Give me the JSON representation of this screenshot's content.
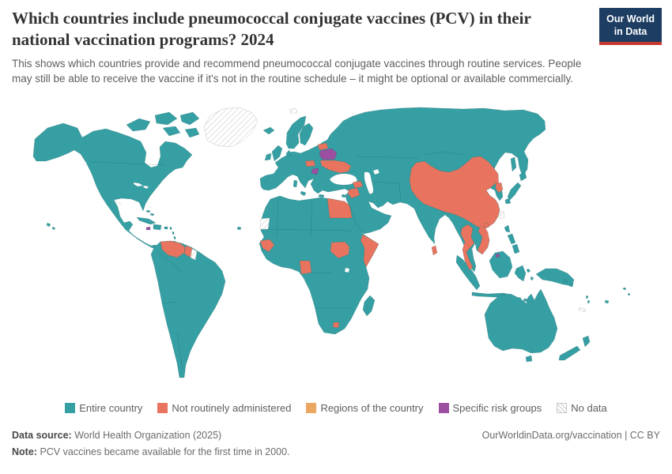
{
  "header": {
    "title": "Which countries include pneumococcal conjugate vaccines (PCV) in their national vaccination programs? 2024",
    "subtitle": "This shows which countries provide and recommend pneumococcal conjugate vaccines through routine services. People may still be able to receive the vaccine if it's not in the routine schedule – it might be optional or available commercially.",
    "logo": {
      "line1": "Our World",
      "line2": "in Data"
    }
  },
  "map": {
    "type": "choropleth-world-map",
    "colors": {
      "entire": "#359FA3",
      "not_routine": "#E8745F",
      "regions": "#EBA660",
      "risk": "#9C4EA0",
      "nodata_line": "#CFCFCF",
      "sea": "#FFFFFF"
    },
    "categories": {
      "entire_country": [
        "United States",
        "Canada",
        "Mexico",
        "Central America",
        "Brazil",
        "Colombia",
        "Peru",
        "Chile",
        "Argentina",
        "most of Europe",
        "Russia",
        "Turkey",
        "Saudi Arabia",
        "Iran",
        "India",
        "Indonesia",
        "Philippines",
        "Japan",
        "South Korea",
        "Australia",
        "New Zealand",
        "most of Africa"
      ],
      "not_routinely_administered": [
        "Venezuela",
        "Guyana",
        "Estonia",
        "Ukraine",
        "Hungary",
        "Syria",
        "Armenia/Azerbaijan",
        "Egypt",
        "South Sudan",
        "Somalia",
        "Gabon",
        "Guinea",
        "Lesotho",
        "China",
        "North Korea",
        "Vietnam",
        "Thailand",
        "Sri Lanka",
        "Hainan"
      ],
      "regions_of_the_country": [],
      "specific_risk_groups": [
        "Belarus",
        "Bosnia and Herzegovina",
        "Jamaica",
        "Brunei"
      ],
      "no_data": [
        "Greenland",
        "Svalbard",
        "Western Sahara",
        "Suriname",
        "Taiwan",
        "New Caledonia"
      ]
    }
  },
  "legend": {
    "items": [
      {
        "key": "entire",
        "label": "Entire country",
        "swatch": "color"
      },
      {
        "key": "not_routine",
        "label": "Not routinely administered",
        "swatch": "color"
      },
      {
        "key": "regions",
        "label": "Regions of the country",
        "swatch": "color"
      },
      {
        "key": "risk",
        "label": "Specific risk groups",
        "swatch": "color"
      },
      {
        "key": "nodata",
        "label": "No data",
        "swatch": "hatch"
      }
    ]
  },
  "footer": {
    "data_source_label": "Data source:",
    "data_source": "World Health Organization (2025)",
    "note_label": "Note:",
    "note": "PCV vaccines became available for the first time in 2000.",
    "attribution": "OurWorldinData.org/vaccination | CC BY"
  }
}
